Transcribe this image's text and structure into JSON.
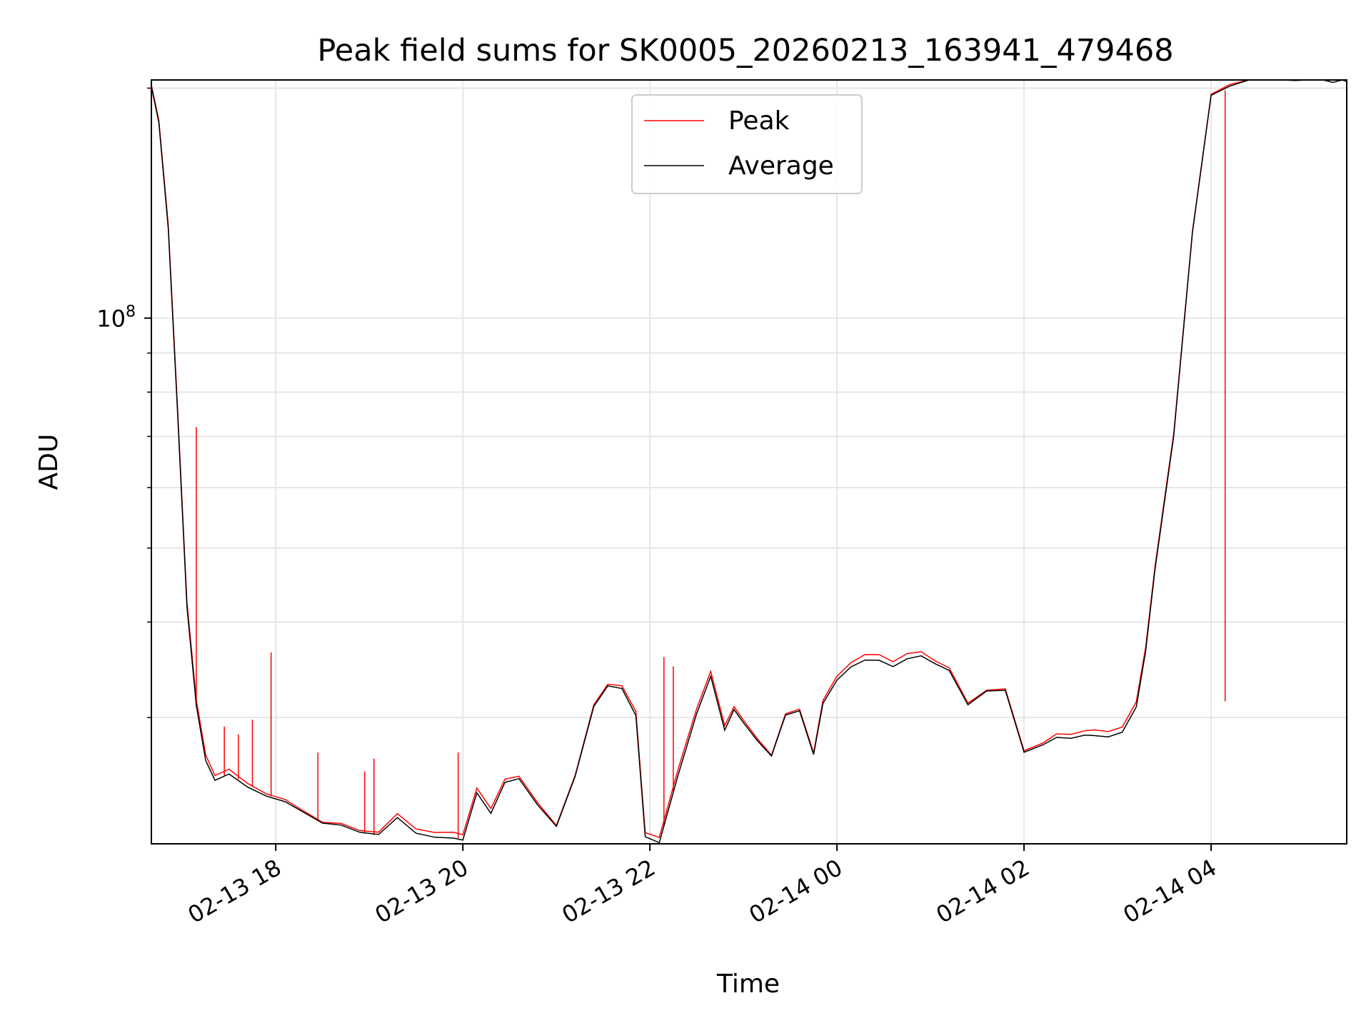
{
  "chart_data": {
    "type": "line",
    "title": "Peak field sums for SK0005_20260213_163941_479468",
    "xlabel": "Time",
    "ylabel": "ADU",
    "y_scale": "log",
    "ylim": [
      20500000,
      205000000
    ],
    "xlim_hours": [
      16.67,
      29.45
    ],
    "grid": true,
    "legend_position": "upper-center",
    "x_ticks": [
      {
        "label": "02-13 18",
        "hour": 18
      },
      {
        "label": "02-13 20",
        "hour": 20
      },
      {
        "label": "02-13 22",
        "hour": 22
      },
      {
        "label": "02-14 00",
        "hour": 24
      },
      {
        "label": "02-14 02",
        "hour": 26
      },
      {
        "label": "02-14 04",
        "hour": 28
      }
    ],
    "y_major_tick": {
      "value": 100000000,
      "base": "10",
      "exponent": "8"
    },
    "y_minor_ticks": [
      20000000,
      30000000,
      40000000,
      50000000,
      60000000,
      70000000,
      80000000,
      90000000,
      200000000
    ],
    "series": [
      {
        "name": "Average",
        "color": "#000000",
        "hours": [
          16.67,
          16.75,
          16.85,
          16.95,
          17.05,
          17.15,
          17.25,
          17.35,
          17.5,
          17.7,
          17.9,
          18.1,
          18.3,
          18.5,
          18.7,
          18.9,
          19.1,
          19.3,
          19.5,
          19.7,
          19.9,
          20.0,
          20.15,
          20.3,
          20.45,
          20.6,
          20.8,
          21.0,
          21.2,
          21.4,
          21.55,
          21.7,
          21.85,
          21.95,
          22.1,
          22.3,
          22.5,
          22.65,
          22.8,
          22.9,
          23.0,
          23.15,
          23.3,
          23.45,
          23.6,
          23.75,
          23.85,
          24.0,
          24.15,
          24.3,
          24.45,
          24.6,
          24.75,
          24.9,
          25.05,
          25.2,
          25.4,
          25.6,
          25.8,
          26.0,
          26.2,
          26.35,
          26.5,
          26.65,
          26.75,
          26.9,
          27.05,
          27.2,
          27.3,
          27.4,
          27.6,
          27.8,
          28.0,
          28.2,
          28.4,
          28.6,
          28.75,
          28.9,
          29.05,
          29.2,
          29.3,
          29.4,
          29.45
        ],
        "values": [
          200000000,
          180000000,
          130000000,
          75000000,
          42000000,
          31000000,
          26500000,
          25000000,
          25300000,
          24500000,
          23800000,
          23200000,
          22600000,
          21800000,
          21500000,
          21200000,
          21000000,
          22000000,
          21200000,
          20900000,
          20800000,
          20900000,
          24000000,
          22500000,
          24900000,
          25000000,
          23000000,
          21700000,
          25000000,
          30800000,
          33000000,
          32500000,
          30000000,
          21000000,
          20500000,
          25200000,
          30600000,
          34000000,
          29000000,
          31000000,
          29500000,
          28000000,
          26800000,
          30000000,
          30500000,
          26800000,
          31000000,
          33500000,
          35000000,
          35500000,
          35800000,
          35200000,
          35800000,
          36400000,
          35500000,
          34500000,
          31300000,
          32500000,
          32300000,
          27000000,
          27500000,
          28000000,
          28200000,
          28400000,
          28300000,
          28500000,
          28800000,
          31000000,
          37000000,
          47000000,
          70000000,
          130000000,
          195000000,
          200000000,
          205000000,
          205000000,
          205000000,
          205000000,
          205000000,
          205000000,
          205000000,
          205000000,
          205000000
        ]
      },
      {
        "name": "Peak",
        "color": "#ff0000",
        "spikes": [
          {
            "hour": 17.15,
            "value": 72000000
          },
          {
            "hour": 17.45,
            "value": 29200000
          },
          {
            "hour": 17.6,
            "value": 28500000
          },
          {
            "hour": 17.75,
            "value": 29800000
          },
          {
            "hour": 17.95,
            "value": 36500000
          },
          {
            "hour": 18.45,
            "value": 27000000
          },
          {
            "hour": 18.95,
            "value": 25500000
          },
          {
            "hour": 19.05,
            "value": 26500000
          },
          {
            "hour": 19.95,
            "value": 27000000
          },
          {
            "hour": 20.1,
            "value": 23000000
          },
          {
            "hour": 22.15,
            "value": 36000000
          },
          {
            "hour": 22.25,
            "value": 35000000
          },
          {
            "hour": 28.15,
            "value": 31500000
          }
        ]
      }
    ]
  }
}
